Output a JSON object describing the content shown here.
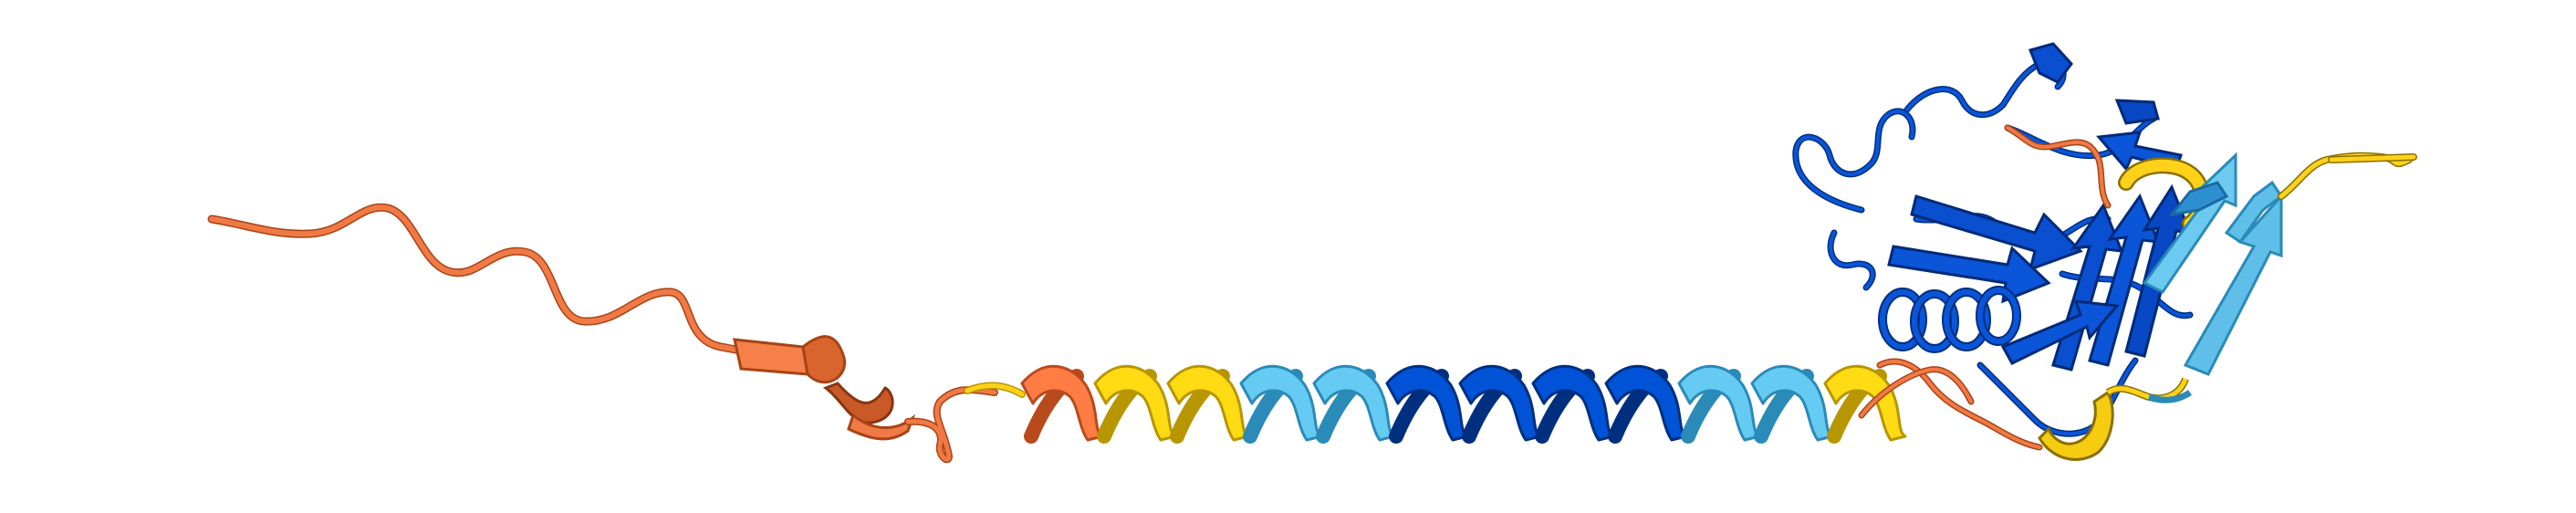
{
  "image": {
    "subject": "protein-ribbon-structure",
    "background": "#ffffff"
  },
  "colors": {
    "very_high": "#0053d6",
    "confident": "#65cbf3",
    "low": "#ffdb13",
    "very_low": "#ff7d45",
    "outline_very_low": "#b84a1c",
    "outline_low": "#b89600",
    "outline_confident": "#2a8ab8",
    "outline_very_high": "#002f80"
  }
}
